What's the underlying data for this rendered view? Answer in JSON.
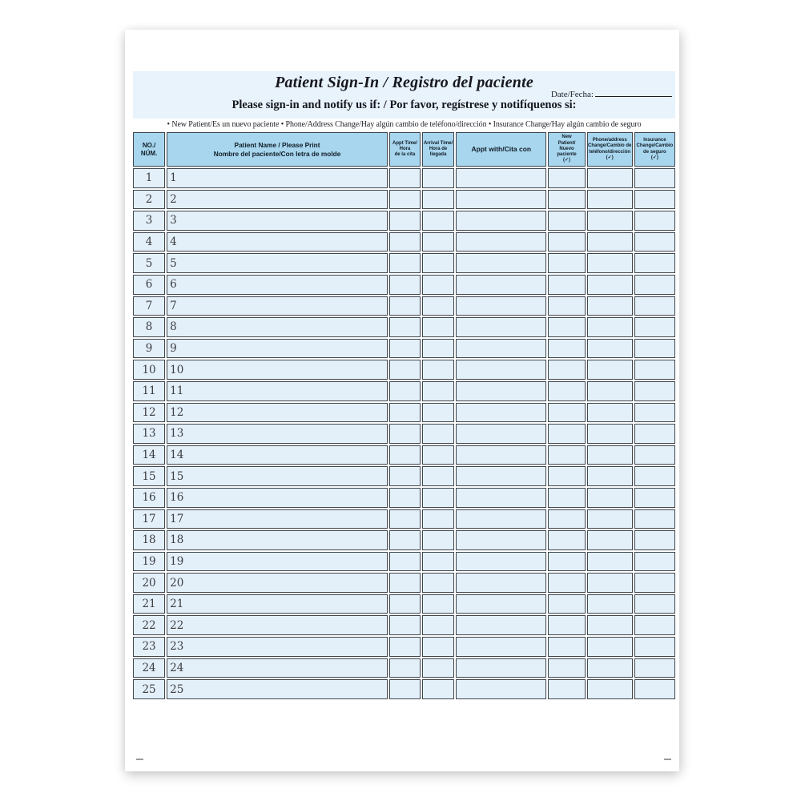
{
  "header": {
    "title": "Patient Sign-In / Registro del paciente",
    "date_label": "Date/Fecha:",
    "subtitle": "Please sign-in and notify us if: / Por favor, regístrese y notifíquenos si:",
    "bullets": "• New Patient/Es un nuevo paciente • Phone/Address Change/Hay algún cambio de teléfono/dirección • Insurance Change/Hay algún cambio de seguro"
  },
  "table": {
    "columns": [
      {
        "id": "no",
        "lines": [
          "NO./",
          "NÚM."
        ]
      },
      {
        "id": "name",
        "lines": [
          "Patient Name / Please Print",
          "Nombre del paciente/Con letra de molde"
        ]
      },
      {
        "id": "appt_time",
        "lines": [
          "Appt Time/",
          "Hora",
          "de la cita"
        ]
      },
      {
        "id": "arrival_time",
        "lines": [
          "Arrival Time/",
          "Hora de",
          "llegada"
        ]
      },
      {
        "id": "appt_with",
        "lines": [
          "Appt with/Cita con"
        ]
      },
      {
        "id": "new_patient",
        "lines": [
          "New",
          "Patient/",
          "Nuevo",
          "paciente",
          "(✓)"
        ]
      },
      {
        "id": "phone_change",
        "lines": [
          "Phone/address",
          "Change/Cambio de",
          "teléfono/dirección",
          "(✓)"
        ]
      },
      {
        "id": "insurance_change",
        "lines": [
          "Insurance",
          "Change/Cambio",
          "de seguro",
          "(✓)"
        ]
      }
    ],
    "row_numbers": [
      "1",
      "2",
      "3",
      "4",
      "5",
      "6",
      "7",
      "8",
      "9",
      "10",
      "11",
      "12",
      "13",
      "14",
      "15",
      "16",
      "17",
      "18",
      "19",
      "20",
      "21",
      "22",
      "23",
      "24",
      "25"
    ],
    "cell_values": {
      "appt_time": "",
      "arrival_time": "",
      "appt_with": "",
      "new_patient": "",
      "phone_change": "",
      "insurance_change": "",
      "patient_name": ""
    }
  },
  "colors": {
    "band": "#e8f3fb",
    "hcell": "#a8d6ee",
    "cell": "#e3f0fa",
    "border": "#40464d"
  }
}
